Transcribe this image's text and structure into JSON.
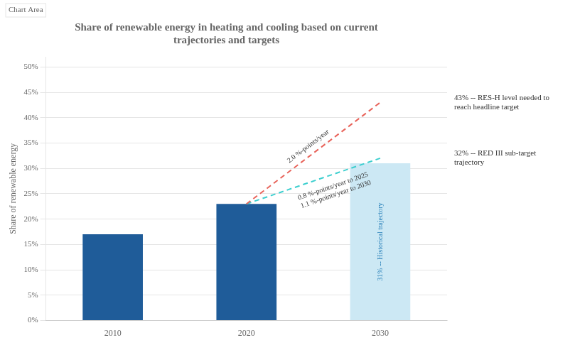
{
  "chart_data": {
    "type": "bar",
    "title": "Share of renewable energy in heating and cooling based on current\ntrajectories and targets",
    "ylabel": "Share of renewable energy",
    "categories": [
      "2010",
      "2020",
      "2030"
    ],
    "series": [
      {
        "type": "bar",
        "values": [
          17,
          23,
          31
        ],
        "colors": [
          "#1f5c99",
          "#1f5c99",
          "#cce8f4"
        ]
      },
      {
        "type": "line",
        "color": "#e8635a",
        "line_style": "dashed",
        "values": [
          null,
          23,
          43
        ]
      },
      {
        "type": "line",
        "color": "#3dcfcf",
        "line_style": "dashed",
        "values": [
          null,
          23,
          32
        ]
      }
    ],
    "ylim": [
      0,
      52
    ],
    "yticks": [
      {
        "value": 0,
        "label": "0%"
      },
      {
        "value": 5,
        "label": "5%"
      },
      {
        "value": 10,
        "label": "10%"
      },
      {
        "value": 15,
        "label": "15%"
      },
      {
        "value": 20,
        "label": "20%"
      },
      {
        "value": 25,
        "label": "25%"
      },
      {
        "value": 30,
        "label": "30%"
      },
      {
        "value": 35,
        "label": "35%"
      },
      {
        "value": 40,
        "label": "40%"
      },
      {
        "value": 45,
        "label": "45%"
      },
      {
        "value": 50,
        "label": "50%"
      }
    ],
    "grid": true,
    "annotations": [
      {
        "text": "43% -- RES-H level needed to\nreach headline target"
      },
      {
        "text": "32% -- RED III sub-target\ntrajectory"
      },
      {
        "text": "2.0 %-points/year"
      },
      {
        "text": "0.8 %-points/year to 2025\n1.1 %-points/year to 2030"
      },
      {
        "text": "31% -- Historical trajectory",
        "color": "#2980b9"
      },
      {
        "text": "Chart Area"
      }
    ]
  }
}
